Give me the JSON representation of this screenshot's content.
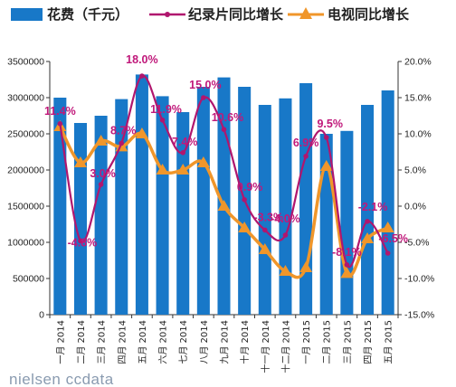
{
  "chart_data": {
    "type": "bar",
    "categories": [
      "一月 2014",
      "二月 2014",
      "三月 2014",
      "四月 2014",
      "五月 2014",
      "六月 2014",
      "七月 2014",
      "八月 2014",
      "九月 2014",
      "十月 2014",
      "十一月 2014",
      "十二月 2014",
      "一月 2015",
      "二月 2015",
      "三月 2015",
      "四月 2015",
      "五月 2015"
    ],
    "series": [
      {
        "name": "花费（千元）",
        "kind": "bar",
        "axis": "left",
        "color": "#1878c8",
        "values": [
          3000000,
          2650000,
          2750000,
          2980000,
          3320000,
          3020000,
          2800000,
          3150000,
          3280000,
          3150000,
          2900000,
          2990000,
          3200000,
          2500000,
          2540000,
          2900000,
          3100000
        ]
      },
      {
        "name": "纪录片同比增长",
        "kind": "line",
        "axis": "right",
        "color": "#b0166e",
        "values": [
          11.4,
          -4.8,
          3.0,
          8.7,
          18.0,
          11.9,
          7.4,
          15.0,
          10.6,
          0.9,
          -3.3,
          -4.0,
          6.9,
          9.5,
          -8.1,
          -2.1,
          -6.5
        ]
      },
      {
        "name": "电视同比增长",
        "kind": "line",
        "axis": "right",
        "color": "#f0962a",
        "values": [
          11.0,
          6.0,
          9.0,
          8.2,
          10.0,
          5.0,
          5.0,
          6.0,
          0.0,
          -3.0,
          -6.0,
          -9.0,
          -8.5,
          5.5,
          -9.3,
          -4.5,
          -3.0
        ]
      }
    ],
    "data_labels": [
      "11.4%",
      "-4.8%",
      "3.0%",
      "8.7%",
      "18.0%",
      "11.9%",
      "7.4%",
      "15.0%",
      "10.6%",
      "0.9%",
      "-3.3%",
      "-4.0%",
      "6.9%",
      "9.5%",
      "-8.1%",
      "-2.1%",
      "-6.5%"
    ],
    "y_left": {
      "min": 0,
      "max": 3500000,
      "ticks": [
        "0",
        "500000",
        "1000000",
        "1500000",
        "2000000",
        "2500000",
        "3000000",
        "3500000"
      ]
    },
    "y_right": {
      "min": -15,
      "max": 20,
      "ticks": [
        "-15.0%",
        "-10.0%",
        "-5.0%",
        "0.0%",
        "5.0%",
        "10.0%",
        "15.0%",
        "20.0%"
      ]
    },
    "legend_position": "top",
    "source_text": "nielsen ccdata"
  }
}
